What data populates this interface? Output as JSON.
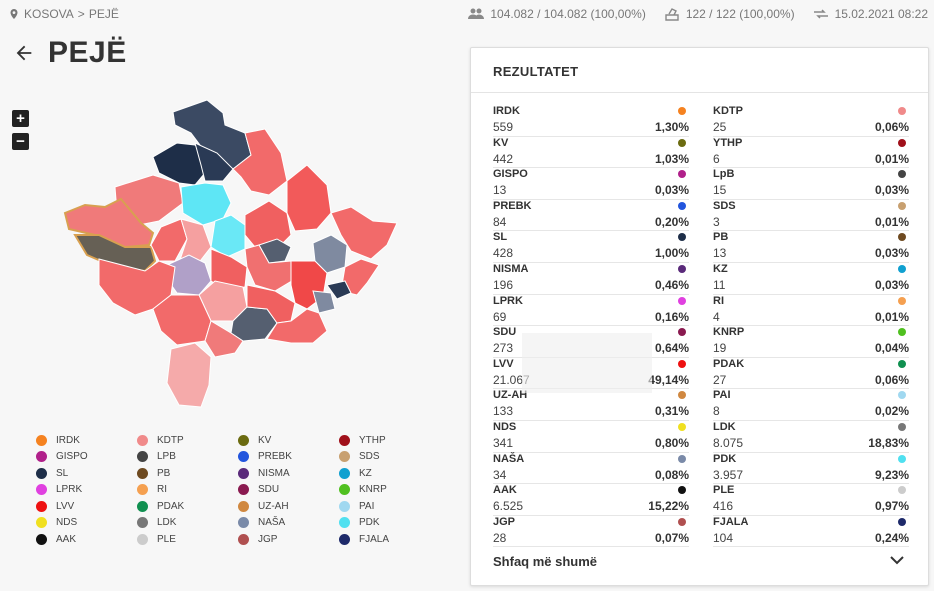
{
  "breadcrumb": {
    "country": "KOSOVA",
    "separator": ">",
    "current": "PEJË"
  },
  "stats": {
    "voters": "104.082 / 104.082 (100,00%)",
    "stations": "122 / 122 (100,00%)",
    "updated": "15.02.2021 08:22"
  },
  "title": "PEJË",
  "zoom": {
    "in": "+",
    "out": "−"
  },
  "panel": {
    "title": "REZULTATET",
    "more_label": "Shfaq më shumë"
  },
  "parties": [
    {
      "name": "IRDK",
      "votes": "559",
      "pct": "1,30%",
      "color": "#f58220"
    },
    {
      "name": "KDTP",
      "votes": "25",
      "pct": "0,06%",
      "color": "#f08a8a"
    },
    {
      "name": "KV",
      "votes": "442",
      "pct": "1,03%",
      "color": "#6b6b10"
    },
    {
      "name": "YTHP",
      "votes": "6",
      "pct": "0,01%",
      "color": "#a0101a"
    },
    {
      "name": "GISPO",
      "votes": "13",
      "pct": "0,03%",
      "color": "#b0208a"
    },
    {
      "name": "LpB",
      "votes": "15",
      "pct": "0,03%",
      "color": "#444444"
    },
    {
      "name": "PREBK",
      "votes": "84",
      "pct": "0,20%",
      "color": "#2255dd"
    },
    {
      "name": "SDS",
      "votes": "3",
      "pct": "0,01%",
      "color": "#c8a070"
    },
    {
      "name": "SL",
      "votes": "428",
      "pct": "1,00%",
      "color": "#1e2e48"
    },
    {
      "name": "PB",
      "votes": "13",
      "pct": "0,03%",
      "color": "#6e4a20"
    },
    {
      "name": "NISMA",
      "votes": "196",
      "pct": "0,46%",
      "color": "#5a2a7a"
    },
    {
      "name": "KZ",
      "votes": "11",
      "pct": "0,03%",
      "color": "#10a0d0"
    },
    {
      "name": "LPRK",
      "votes": "69",
      "pct": "0,16%",
      "color": "#e040e0"
    },
    {
      "name": "RI",
      "votes": "4",
      "pct": "0,01%",
      "color": "#f5a050"
    },
    {
      "name": "SDU",
      "votes": "273",
      "pct": "0,64%",
      "color": "#8a1a50"
    },
    {
      "name": "KNRP",
      "votes": "19",
      "pct": "0,04%",
      "color": "#50c020"
    },
    {
      "name": "LVV",
      "votes": "21.067",
      "pct": "49,14%",
      "color": "#ee1111"
    },
    {
      "name": "PDAK",
      "votes": "27",
      "pct": "0,06%",
      "color": "#109050"
    },
    {
      "name": "UZ-AH",
      "votes": "133",
      "pct": "0,31%",
      "color": "#d08840"
    },
    {
      "name": "PAI",
      "votes": "8",
      "pct": "0,02%",
      "color": "#a0d8f0"
    },
    {
      "name": "NDS",
      "votes": "341",
      "pct": "0,80%",
      "color": "#f0e020"
    },
    {
      "name": "LDK",
      "votes": "8.075",
      "pct": "18,83%",
      "color": "#777777"
    },
    {
      "name": "NAŠA",
      "votes": "34",
      "pct": "0,08%",
      "color": "#7a8aa8"
    },
    {
      "name": "PDK",
      "votes": "3.957",
      "pct": "9,23%",
      "color": "#50e0f0"
    },
    {
      "name": "AAK",
      "votes": "6.525",
      "pct": "15,22%",
      "color": "#111111"
    },
    {
      "name": "PLE",
      "votes": "416",
      "pct": "0,97%",
      "color": "#cccccc"
    },
    {
      "name": "JGP",
      "votes": "28",
      "pct": "0,07%",
      "color": "#b05050"
    },
    {
      "name": "FJALA",
      "votes": "104",
      "pct": "0,24%",
      "color": "#1e2a6a"
    }
  ],
  "legend": [
    {
      "name": "IRDK",
      "color": "#f58220"
    },
    {
      "name": "KDTP",
      "color": "#f08a8a"
    },
    {
      "name": "KV",
      "color": "#6b6b10"
    },
    {
      "name": "YTHP",
      "color": "#a0101a"
    },
    {
      "name": "GISPO",
      "color": "#b0208a"
    },
    {
      "name": "LPB",
      "color": "#444444"
    },
    {
      "name": "PREBK",
      "color": "#2255dd"
    },
    {
      "name": "SDS",
      "color": "#c8a070"
    },
    {
      "name": "SL",
      "color": "#1e2e48"
    },
    {
      "name": "PB",
      "color": "#6e4a20"
    },
    {
      "name": "NISMA",
      "color": "#5a2a7a"
    },
    {
      "name": "KZ",
      "color": "#10a0d0"
    },
    {
      "name": "LPRK",
      "color": "#e040e0"
    },
    {
      "name": "RI",
      "color": "#f5a050"
    },
    {
      "name": "SDU",
      "color": "#8a1a50"
    },
    {
      "name": "KNRP",
      "color": "#50c020"
    },
    {
      "name": "LVV",
      "color": "#ee1111"
    },
    {
      "name": "PDAK",
      "color": "#109050"
    },
    {
      "name": "UZ-AH",
      "color": "#d08840"
    },
    {
      "name": "PAI",
      "color": "#a0d8f0"
    },
    {
      "name": "NDS",
      "color": "#f0e020"
    },
    {
      "name": "LDK",
      "color": "#777777"
    },
    {
      "name": "NAŠA",
      "color": "#7a8aa8"
    },
    {
      "name": "PDK",
      "color": "#50e0f0"
    },
    {
      "name": "AAK",
      "color": "#111111"
    },
    {
      "name": "PLE",
      "color": "#cccccc"
    },
    {
      "name": "JGP",
      "color": "#b05050"
    },
    {
      "name": "FJALA",
      "color": "#1e2a6a"
    }
  ]
}
